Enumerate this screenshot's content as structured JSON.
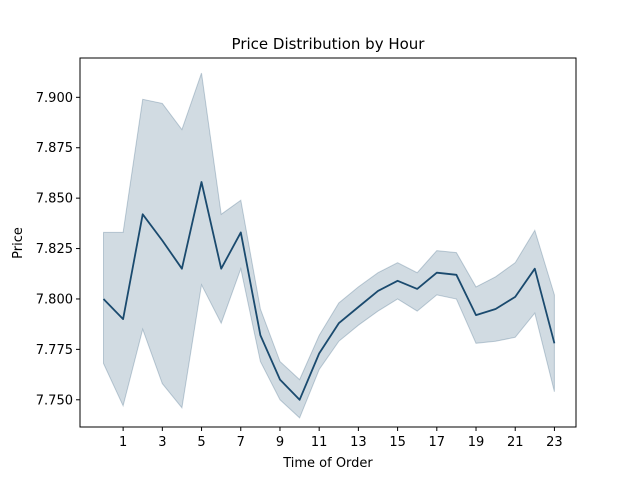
{
  "chart_data": {
    "type": "line",
    "title": "Price Distribution by Hour",
    "xlabel": "Time of Order",
    "ylabel": "Price",
    "xlim": [
      -1.2,
      24.1
    ],
    "ylim": [
      7.7365,
      7.9195
    ],
    "xticks": [
      1,
      3,
      5,
      7,
      9,
      11,
      13,
      15,
      17,
      19,
      21,
      23
    ],
    "yticks": [
      7.75,
      7.775,
      7.8,
      7.825,
      7.85,
      7.875,
      7.9
    ],
    "ytick_labels": [
      "7.750",
      "7.775",
      "7.800",
      "7.825",
      "7.850",
      "7.875",
      "7.900"
    ],
    "grid": false,
    "line_color": "#1a4a6e",
    "band_color": "#1a4a6e",
    "series": [
      {
        "x": [
          0,
          1,
          2,
          3,
          4,
          5,
          6,
          7,
          8,
          9,
          10,
          11,
          12,
          13,
          14,
          15,
          16,
          17,
          18,
          19,
          20,
          21,
          22,
          23
        ],
        "values": [
          7.8,
          7.79,
          7.842,
          7.829,
          7.815,
          7.858,
          7.815,
          7.833,
          7.782,
          7.76,
          7.75,
          7.773,
          7.788,
          7.796,
          7.804,
          7.809,
          7.805,
          7.813,
          7.812,
          7.792,
          7.795,
          7.801,
          7.815,
          7.778
        ],
        "ci_lower": [
          7.768,
          7.747,
          7.785,
          7.758,
          7.746,
          7.807,
          7.788,
          7.815,
          7.769,
          7.75,
          7.741,
          7.765,
          7.779,
          7.787,
          7.794,
          7.8,
          7.794,
          7.802,
          7.8,
          7.778,
          7.779,
          7.781,
          7.793,
          7.754
        ],
        "ci_upper": [
          7.833,
          7.833,
          7.899,
          7.897,
          7.884,
          7.912,
          7.842,
          7.849,
          7.795,
          7.769,
          7.76,
          7.782,
          7.798,
          7.806,
          7.813,
          7.818,
          7.813,
          7.824,
          7.823,
          7.806,
          7.811,
          7.818,
          7.834,
          7.802
        ]
      }
    ]
  }
}
